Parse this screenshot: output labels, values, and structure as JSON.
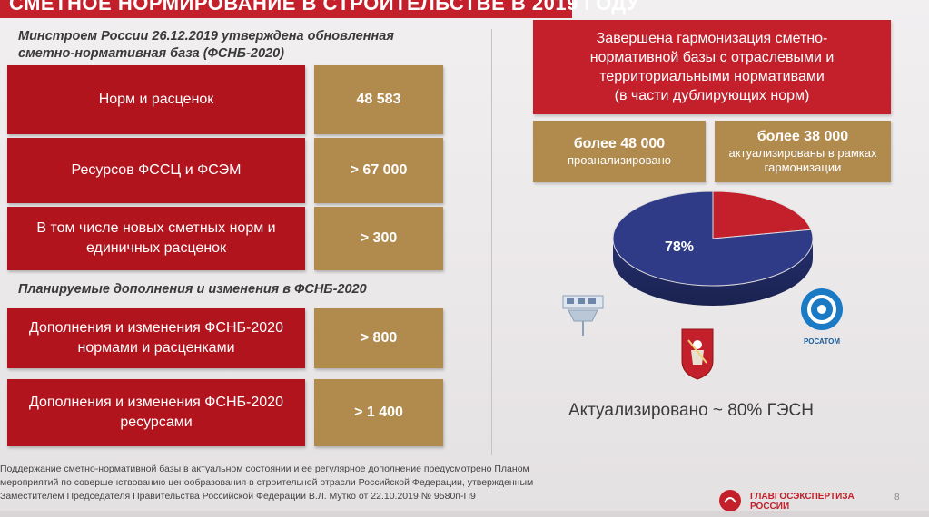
{
  "header": {
    "title": "СМЕТНОЕ НОРМИРОВАНИЕ В СТРОИТЕЛЬСТВЕ В 2019 ГОДУ"
  },
  "left": {
    "heading1": [
      "Минстроем России 26.12.2019 утверждена обновленная",
      "сметно-нормативная база (ФСНБ-2020)"
    ],
    "rows1": [
      {
        "label": "Норм и расценок",
        "value": "48 583"
      },
      {
        "label": "Ресурсов ФССЦ и ФСЭМ",
        "value": "> 67 000"
      },
      {
        "label": "В том числе новых сметных норм и единичных расценок",
        "value": "> 300"
      }
    ],
    "heading2": "Планируемые дополнения и изменения в ФСНБ-2020",
    "rows2": [
      {
        "label": "Дополнения и изменения ФСНБ-2020 нормами и расценками",
        "value": "> 800"
      },
      {
        "label": "Дополнения и изменения ФСНБ-2020 ресурсами",
        "value": "> 1 400"
      }
    ],
    "footnote": [
      "Поддержание сметно-нормативной базы в актуальном состоянии и ее регулярное дополнение предусмотрено Планом",
      "мероприятий по совершенствованию ценообразования в строительной отрасли Российской Федерации, утвержденным",
      "Заместителем Председателя Правительства Российской Федерации В.Л. Мутко от 22.10.2019 № 9580п-П9"
    ]
  },
  "right": {
    "harmonization": [
      "Завершена гармонизация сметно-",
      "нормативной базы с отраслевыми и",
      "территориальными нормативами",
      "(в части дублирующих норм)"
    ],
    "stat1": {
      "value": "более 48 000",
      "caption": "проанализировано"
    },
    "stat2": {
      "value": "более 38 000",
      "caption": "актуализированы в рамках гармонизации"
    },
    "pie": {
      "label": "78%",
      "values": [
        78,
        22
      ],
      "colors": [
        "#2f3b86",
        "#c3202c"
      ]
    },
    "logos": {
      "rosatom": "РОСАТОМ"
    },
    "bottom_caption": "Актуализировано ~ 80% ГЭСН"
  },
  "footer": {
    "brand": "ГЛАВГОСЭКСПЕРТИЗА",
    "brand_sub": "РОССИИ",
    "page": "8"
  }
}
